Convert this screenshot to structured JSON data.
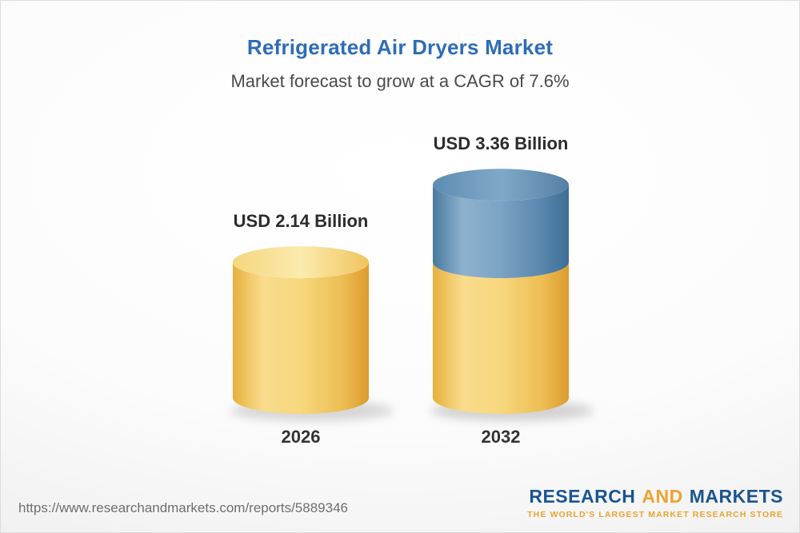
{
  "header": {
    "title": "Refrigerated Air Dryers Market",
    "subtitle": "Market forecast to grow at a CAGR of 7.6%"
  },
  "chart_data": {
    "type": "bar",
    "title": "Refrigerated Air Dryers Market",
    "subtitle": "Market forecast to grow at a CAGR of 7.6%",
    "categories": [
      "2026",
      "2032"
    ],
    "values": [
      2.14,
      3.36
    ],
    "value_labels": [
      "USD 2.14 Billion",
      "USD 3.36 Billion"
    ],
    "unit": "USD Billion",
    "cagr_pct": 7.6,
    "bar_style": "3d-cylinder",
    "legend": "none",
    "colors": {
      "base_segment": "#F2C95C",
      "growth_segment": "#5C8CB5",
      "title_accent": "#2E6CB6"
    }
  },
  "footer": {
    "url": "https://www.researchandmarkets.com/reports/5889346",
    "logo": {
      "word1": "RESEARCH",
      "word2": "AND",
      "word3": "MARKETS",
      "tagline": "THE WORLD'S LARGEST MARKET RESEARCH STORE",
      "blue": "#1A5592",
      "gold": "#F0A22E"
    }
  }
}
